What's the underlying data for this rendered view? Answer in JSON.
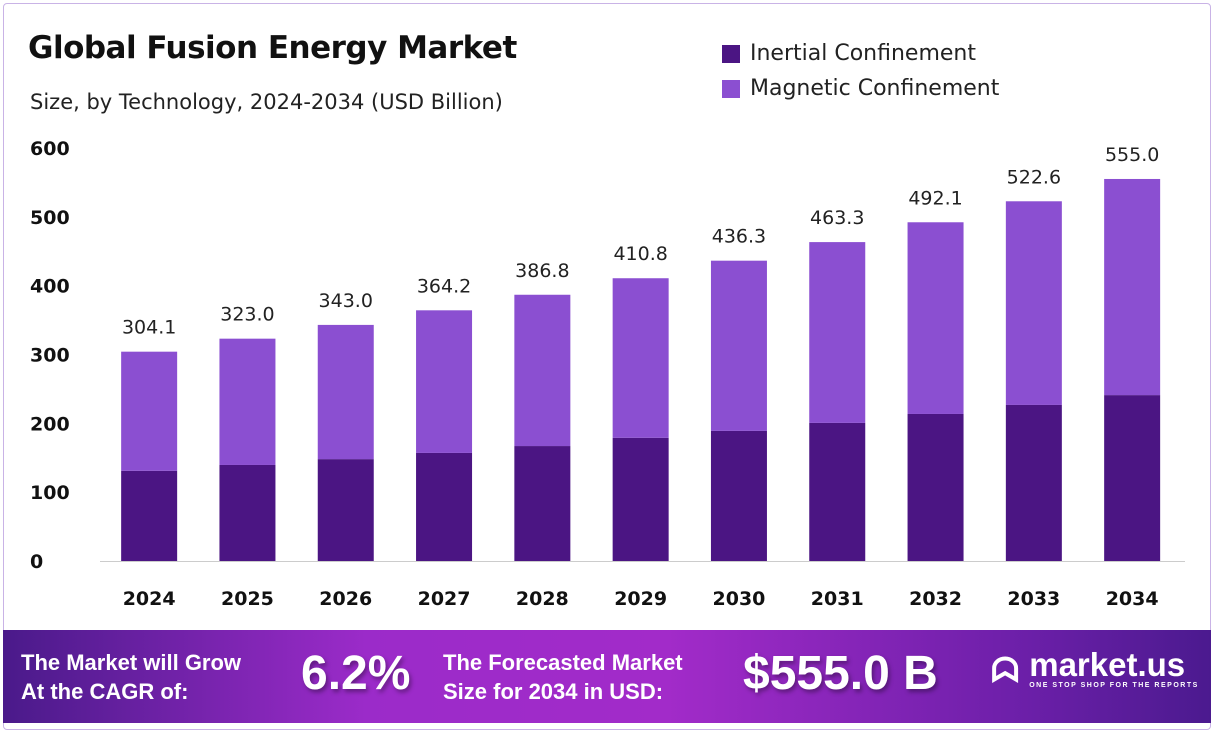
{
  "chart_data": {
    "type": "bar",
    "stacked": true,
    "title": "Global Fusion Energy Market",
    "subtitle": "Size, by Technology, 2024-2034 (USD Billion)",
    "categories": [
      "2024",
      "2025",
      "2026",
      "2027",
      "2028",
      "2029",
      "2030",
      "2031",
      "2032",
      "2033",
      "2034"
    ],
    "series": [
      {
        "name": "Inertial Confinement",
        "color": "#4b1583",
        "values": [
          131,
          139.5,
          148,
          157,
          167,
          179,
          189,
          200.6,
          213.6,
          226.7,
          241
        ]
      },
      {
        "name": "Magnetic Confinement",
        "color": "#8b4fd1",
        "values": [
          173.1,
          183.5,
          195,
          207.2,
          219.8,
          231.8,
          247.3,
          262.7,
          278.5,
          295.9,
          314
        ]
      }
    ],
    "totals": [
      "304.1",
      "323.0",
      "343.0",
      "364.2",
      "386.8",
      "410.8",
      "436.3",
      "463.3",
      "492.1",
      "522.6",
      "555.0"
    ],
    "yticks": [
      "0",
      "100",
      "200",
      "300",
      "400",
      "500",
      "600"
    ],
    "ylim": [
      0,
      600
    ],
    "grid": false,
    "legend_position": "top-right"
  },
  "footer": {
    "cagr_line1": "The Market will Grow",
    "cagr_line2": "At the CAGR of:",
    "cagr_value": "6.2%",
    "forecast_line1": "The Forecasted Market",
    "forecast_line2": "Size for 2034 in USD:",
    "forecast_value": "$555.0 B",
    "brand": "market.us",
    "brand_tagline": "ONE STOP SHOP FOR THE REPORTS"
  }
}
